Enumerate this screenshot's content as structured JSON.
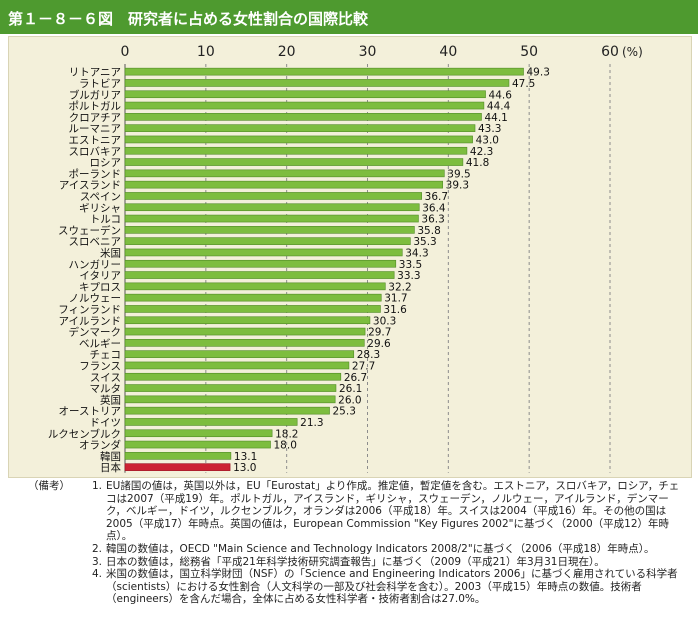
{
  "title": "第１－８－６図　研究者に占める女性割合の国際比較",
  "colors": {
    "header": "#4e9a2f",
    "bar": "#7dbd3f",
    "highlight": "#cc2233",
    "panel": "#f3f0da"
  },
  "chart_data": {
    "type": "bar",
    "orientation": "horizontal",
    "unit": "(%)",
    "xlim": [
      0,
      60
    ],
    "x_ticks": [
      0,
      10,
      20,
      30,
      40,
      50,
      60
    ],
    "grid": "dashed vertical",
    "highlight": "日本",
    "categories": [
      "リトアニア",
      "ラトビア",
      "ブルガリア",
      "ポルトガル",
      "クロアチア",
      "ルーマニア",
      "エストニア",
      "スロバキア",
      "ロシア",
      "ポーランド",
      "アイスランド",
      "スペイン",
      "ギリシャ",
      "トルコ",
      "スウェーデン",
      "スロベニア",
      "米国",
      "ハンガリー",
      "イタリア",
      "キプロス",
      "ノルウェー",
      "フィンランド",
      "アイルランド",
      "デンマーク",
      "ベルギー",
      "チェコ",
      "フランス",
      "スイス",
      "マルタ",
      "英国",
      "オーストリア",
      "ドイツ",
      "ルクセンブルク",
      "オランダ",
      "韓国",
      "日本"
    ],
    "values": [
      49.3,
      47.5,
      44.6,
      44.4,
      44.1,
      43.3,
      43.0,
      42.3,
      41.8,
      39.5,
      39.3,
      36.7,
      36.4,
      36.3,
      35.8,
      35.3,
      34.3,
      33.5,
      33.3,
      32.2,
      31.7,
      31.6,
      30.3,
      29.7,
      29.6,
      28.3,
      27.7,
      26.7,
      26.1,
      26.0,
      25.3,
      21.3,
      18.2,
      18.0,
      13.1,
      13.0
    ],
    "value_labels": [
      "49.3",
      "47.5",
      "44.6",
      "44.4",
      "44.1",
      "43.3",
      "43.0",
      "42.3",
      "41.8",
      "39.5",
      "39.3",
      "36.7",
      "36.4",
      "36.3",
      "35.8",
      "35.3",
      "34.3",
      "33.5",
      "33.3",
      "32.2",
      "31.7",
      "31.6",
      "30.3",
      "29.7",
      "29.6",
      "28.3",
      "27.7",
      "26.7",
      "26.1",
      "26.0",
      "25.3",
      "21.3",
      "18.2",
      "18.0",
      "13.1",
      "13.0"
    ]
  },
  "notes": {
    "head": "（備考）",
    "items": [
      {
        "num": "1.",
        "text": "EU諸国の値は，英国以外は，EU「Eurostat」より作成。推定値，暫定値を含む。エストニア，スロバキア，ロシア，チェコは2007（平成19）年。ポルトガル，アイスランド，ギリシャ，スウェーデン，ノルウェー，アイルランド，デンマーク，ベルギー，ドイツ，ルクセンブルク，オランダは2006（平成18）年。スイスは2004（平成16）年。その他の国は2005（平成17）年時点。英国の値は，European Commission \"Key Figures 2002\"に基づく（2000（平成12）年時点）。"
      },
      {
        "num": "2.",
        "text": "韓国の数値は，OECD \"Main Science and Technology Indicators 2008/2\"に基づく（2006（平成18）年時点）。"
      },
      {
        "num": "3.",
        "text": "日本の数値は，総務省「平成21年科学技術研究調査報告」に基づく（2009（平成21）年3月31日現在）。"
      },
      {
        "num": "4.",
        "text": "米国の数値は，国立科学財団（NSF）の「Science and Engineering Indicators 2006」に基づく雇用されている科学者（scientists）における女性割合（人文科学の一部及び社会科学を含む）。2003（平成15）年時点の数値。技術者（engineers）を含んだ場合，全体に占める女性科学者・技術者割合は27.0%。"
      }
    ]
  }
}
